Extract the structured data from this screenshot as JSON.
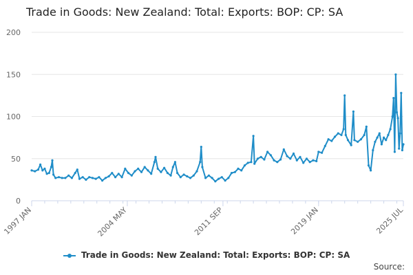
{
  "colors": {
    "series": "#1f8dc8",
    "grid": "#e6e6e6",
    "axis": "#ccd6eb"
  },
  "legend": {
    "label": "Trade in Goods: New Zealand: Total: Exports: BOP: CP: SA"
  },
  "source": {
    "label": "Source:"
  },
  "chart_data": {
    "type": "line",
    "title": "Trade in Goods: New Zealand: Total: Exports: BOP: CP: SA",
    "xlabel": "",
    "ylabel": "",
    "x_ticks": [
      "1997 JAN",
      "2004 MAY",
      "2011 SEP",
      "2019 JAN",
      "2025 JUL"
    ],
    "x_range": [
      "1997 JAN",
      "2025 JUL"
    ],
    "ylim": [
      0,
      200
    ],
    "y_ticks": [
      0,
      50,
      100,
      150,
      200
    ],
    "grid": true,
    "legend_position": "bottom",
    "series": [
      {
        "name": "Trade in Goods: New Zealand: Total: Exports: BOP: CP: SA",
        "points": [
          [
            "1997-01",
            36
          ],
          [
            "1997-04",
            35
          ],
          [
            "1997-07",
            37
          ],
          [
            "1997-09",
            43
          ],
          [
            "1997-11",
            36
          ],
          [
            "1998-01",
            38
          ],
          [
            "1998-03",
            32
          ],
          [
            "1998-05",
            33
          ],
          [
            "1998-07",
            40
          ],
          [
            "1998-08",
            48
          ],
          [
            "1998-09",
            31
          ],
          [
            "1998-11",
            27
          ],
          [
            "1999-02",
            28
          ],
          [
            "1999-05",
            27
          ],
          [
            "1999-08",
            27
          ],
          [
            "1999-11",
            30
          ],
          [
            "2000-02",
            27
          ],
          [
            "2000-05",
            33
          ],
          [
            "2000-07",
            37
          ],
          [
            "2000-09",
            26
          ],
          [
            "2000-12",
            28
          ],
          [
            "2001-03",
            25
          ],
          [
            "2001-06",
            28
          ],
          [
            "2001-09",
            27
          ],
          [
            "2001-12",
            26
          ],
          [
            "2002-03",
            28
          ],
          [
            "2002-06",
            24
          ],
          [
            "2002-09",
            27
          ],
          [
            "2002-12",
            29
          ],
          [
            "2003-03",
            33
          ],
          [
            "2003-06",
            28
          ],
          [
            "2003-09",
            32
          ],
          [
            "2003-12",
            28
          ],
          [
            "2004-03",
            38
          ],
          [
            "2004-06",
            33
          ],
          [
            "2004-09",
            30
          ],
          [
            "2004-12",
            35
          ],
          [
            "2005-03",
            38
          ],
          [
            "2005-06",
            34
          ],
          [
            "2005-09",
            40
          ],
          [
            "2005-12",
            36
          ],
          [
            "2006-03",
            32
          ],
          [
            "2006-06",
            46
          ],
          [
            "2006-07",
            52
          ],
          [
            "2006-09",
            38
          ],
          [
            "2006-12",
            34
          ],
          [
            "2007-03",
            39
          ],
          [
            "2007-06",
            33
          ],
          [
            "2007-09",
            30
          ],
          [
            "2007-11",
            40
          ],
          [
            "2008-01",
            46
          ],
          [
            "2008-03",
            33
          ],
          [
            "2008-06",
            28
          ],
          [
            "2008-09",
            31
          ],
          [
            "2008-12",
            29
          ],
          [
            "2009-03",
            27
          ],
          [
            "2009-06",
            30
          ],
          [
            "2009-09",
            35
          ],
          [
            "2009-12",
            46
          ],
          [
            "2010-01",
            64
          ],
          [
            "2010-02",
            40
          ],
          [
            "2010-05",
            27
          ],
          [
            "2010-08",
            30
          ],
          [
            "2010-11",
            27
          ],
          [
            "2011-02",
            23
          ],
          [
            "2011-05",
            26
          ],
          [
            "2011-08",
            28
          ],
          [
            "2011-11",
            24
          ],
          [
            "2012-02",
            27
          ],
          [
            "2012-05",
            33
          ],
          [
            "2012-08",
            34
          ],
          [
            "2012-11",
            38
          ],
          [
            "2013-02",
            36
          ],
          [
            "2013-05",
            42
          ],
          [
            "2013-08",
            45
          ],
          [
            "2013-11",
            46
          ],
          [
            "2014-01",
            77
          ],
          [
            "2014-02",
            44
          ],
          [
            "2014-05",
            50
          ],
          [
            "2014-08",
            52
          ],
          [
            "2014-11",
            49
          ],
          [
            "2015-02",
            58
          ],
          [
            "2015-05",
            54
          ],
          [
            "2015-08",
            48
          ],
          [
            "2015-11",
            46
          ],
          [
            "2016-02",
            49
          ],
          [
            "2016-05",
            61
          ],
          [
            "2016-08",
            53
          ],
          [
            "2016-11",
            50
          ],
          [
            "2017-02",
            56
          ],
          [
            "2017-05",
            48
          ],
          [
            "2017-08",
            52
          ],
          [
            "2017-11",
            45
          ],
          [
            "2018-02",
            50
          ],
          [
            "2018-05",
            46
          ],
          [
            "2018-08",
            48
          ],
          [
            "2018-11",
            47
          ],
          [
            "2019-01",
            58
          ],
          [
            "2019-04",
            57
          ],
          [
            "2019-07",
            65
          ],
          [
            "2019-10",
            73
          ],
          [
            "2020-01",
            71
          ],
          [
            "2020-04",
            76
          ],
          [
            "2020-07",
            80
          ],
          [
            "2020-10",
            78
          ],
          [
            "2020-12",
            85
          ],
          [
            "2021-01",
            125
          ],
          [
            "2021-02",
            78
          ],
          [
            "2021-04",
            72
          ],
          [
            "2021-07",
            66
          ],
          [
            "2021-09",
            106
          ],
          [
            "2021-10",
            72
          ],
          [
            "2022-01",
            70
          ],
          [
            "2022-04",
            73
          ],
          [
            "2022-07",
            78
          ],
          [
            "2022-09",
            88
          ],
          [
            "2022-11",
            42
          ],
          [
            "2023-01",
            36
          ],
          [
            "2023-03",
            60
          ],
          [
            "2023-05",
            70
          ],
          [
            "2023-07",
            75
          ],
          [
            "2023-09",
            80
          ],
          [
            "2023-11",
            67
          ],
          [
            "2024-01",
            75
          ],
          [
            "2024-03",
            72
          ],
          [
            "2024-05",
            78
          ],
          [
            "2024-07",
            85
          ],
          [
            "2024-09",
            100
          ],
          [
            "2024-10",
            122
          ],
          [
            "2024-11",
            58
          ],
          [
            "2024-12",
            150
          ],
          [
            "2025-01",
            105
          ],
          [
            "2025-02",
            98
          ],
          [
            "2025-03",
            62
          ],
          [
            "2025-04",
            80
          ],
          [
            "2025-05",
            128
          ],
          [
            "2025-06",
            60
          ],
          [
            "2025-07",
            67
          ]
        ]
      }
    ]
  }
}
